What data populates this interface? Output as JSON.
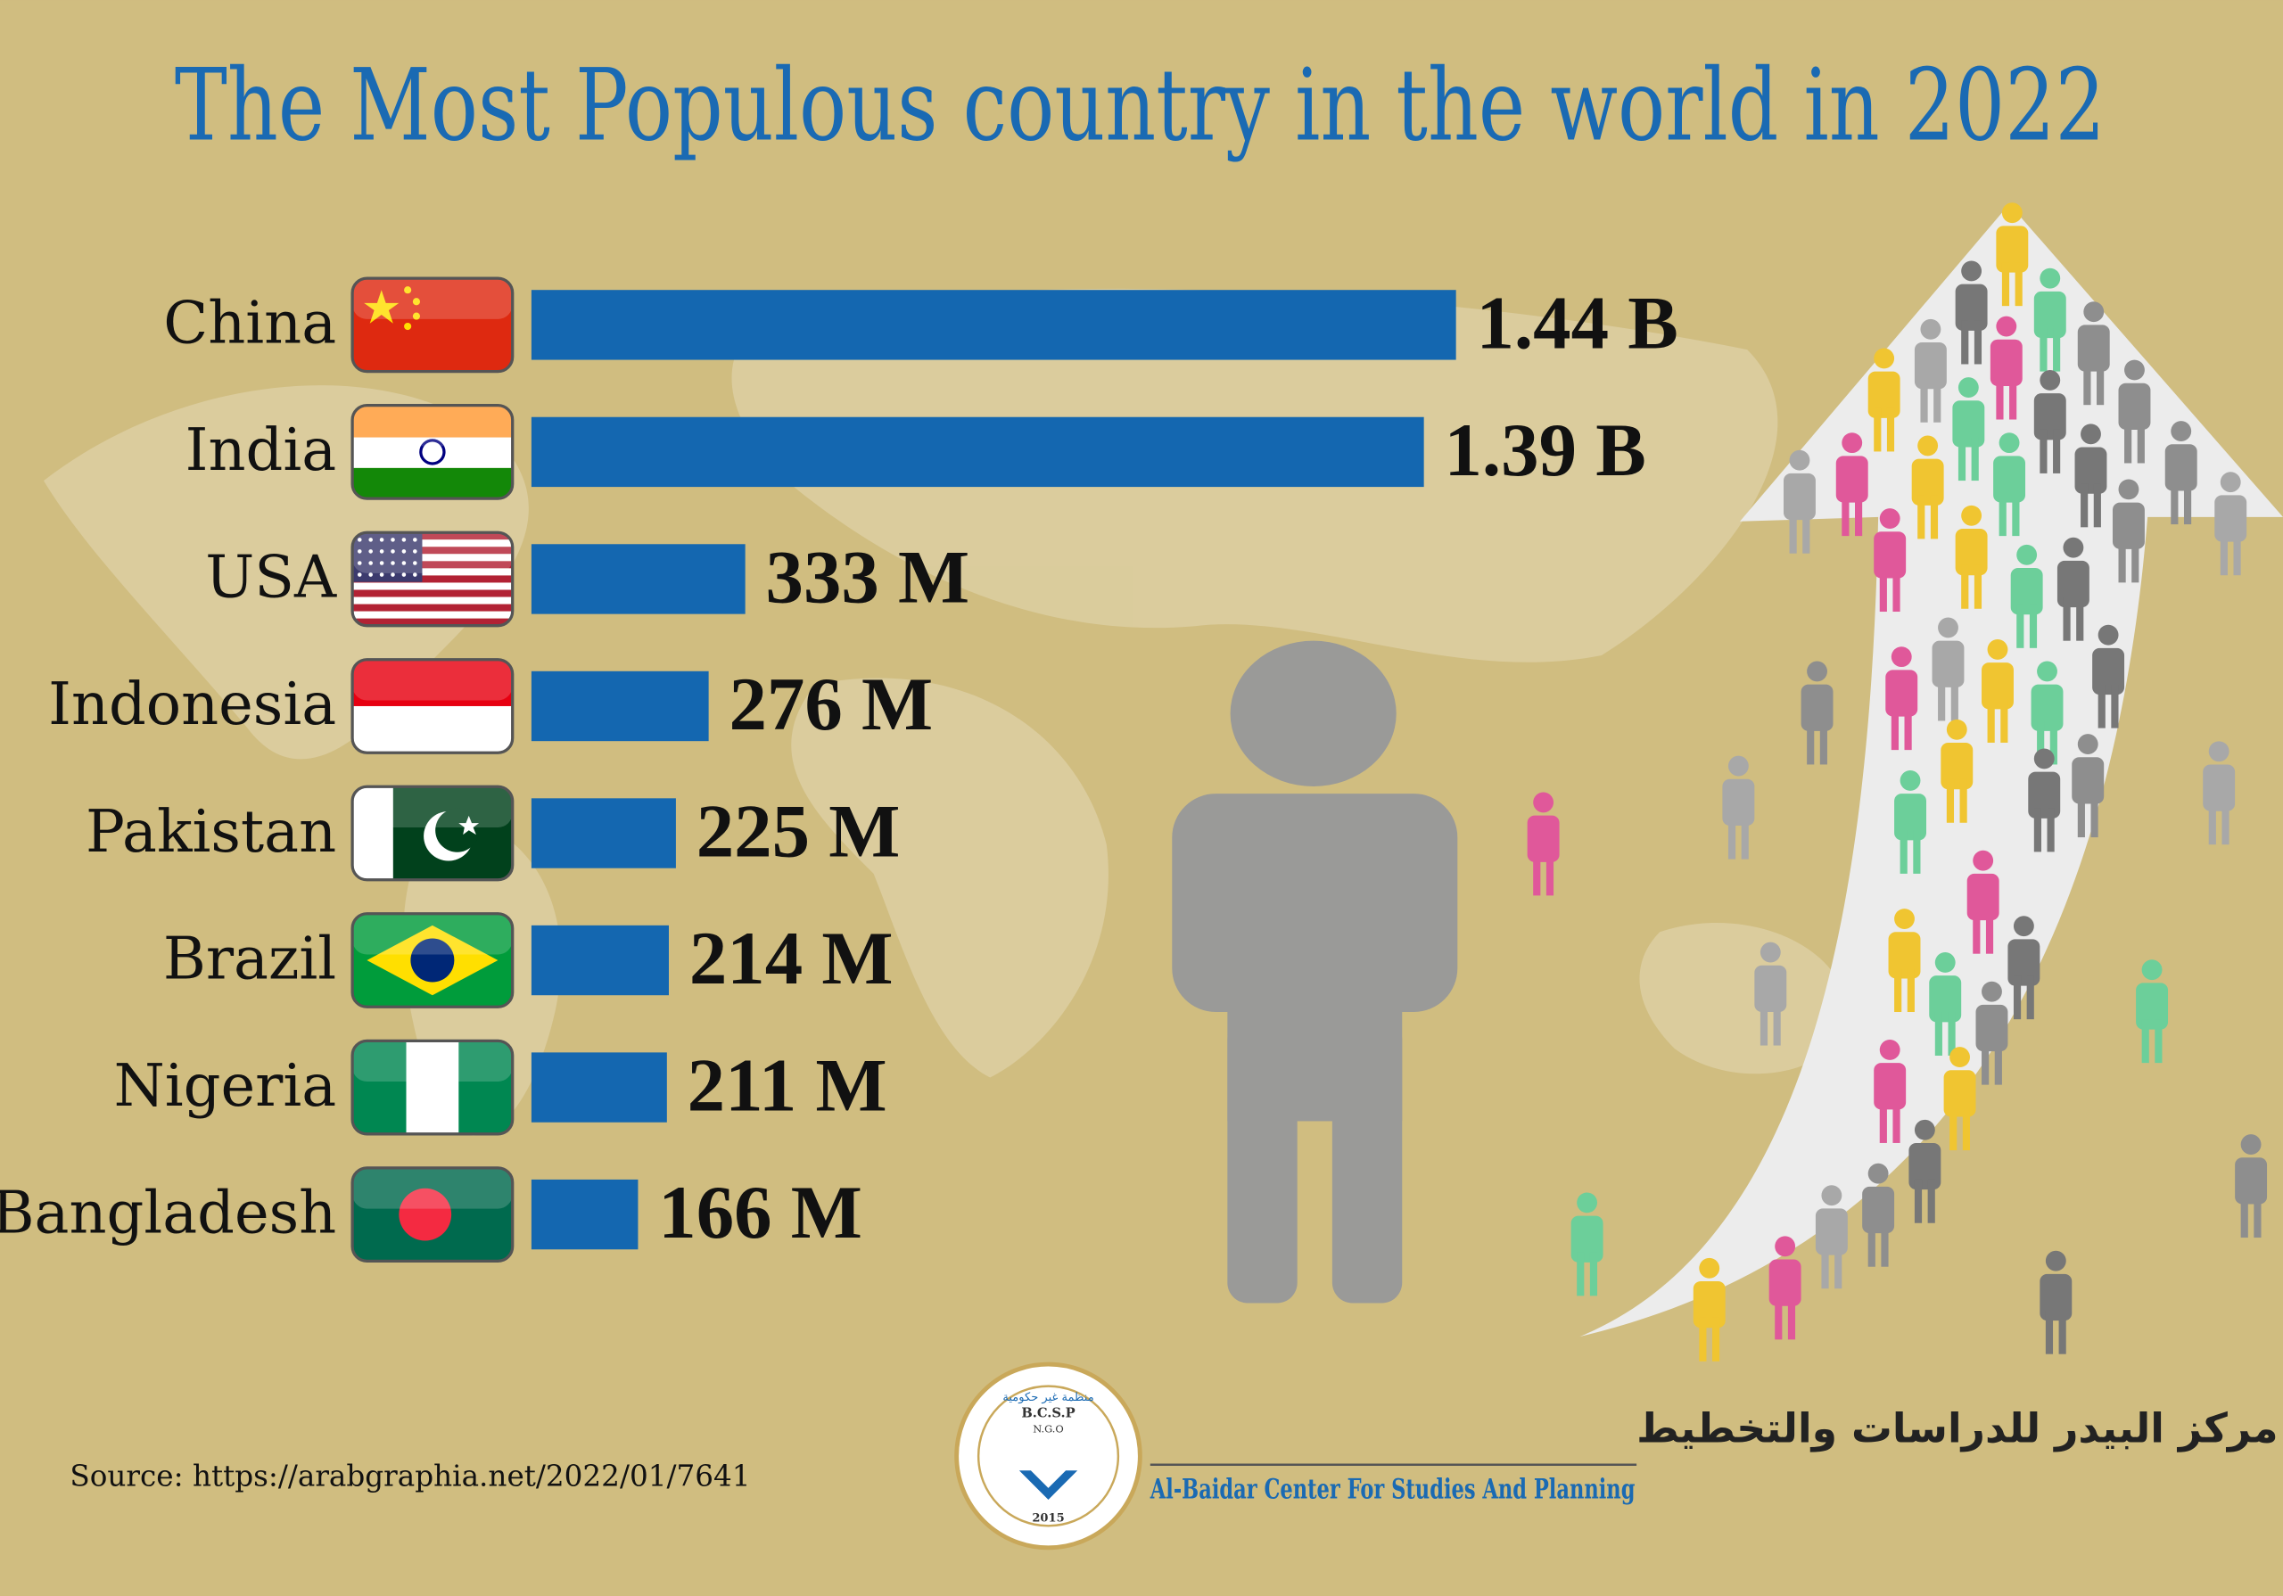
{
  "chart_data": {
    "type": "bar",
    "orientation": "horizontal",
    "title": "The Most Populous country in the world in 2022",
    "categories": [
      "China",
      "India",
      "USA",
      "Indonesia",
      "Pakistan",
      "Brazil",
      "Nigeria",
      "Bangladesh"
    ],
    "values": [
      1440,
      1390,
      333,
      276,
      225,
      214,
      211,
      166
    ],
    "value_labels": [
      "1.44 B",
      "1.39 B",
      "333 M",
      "276 M",
      "225 M",
      "214 M",
      "211 M",
      "166 M"
    ],
    "color": "#1467b0",
    "source": "Source: https://arabgraphia.net/2022/01/7641"
  },
  "logo": {
    "name_ar": "مركز البيدر للدراسات والتخطيط",
    "name_en": "Al-Baidar Center For Studies And Planning",
    "abbr": "B.C.S.P",
    "type": "N.G.O",
    "type_ar": "منظمة غير حكومية",
    "year": "2015"
  }
}
